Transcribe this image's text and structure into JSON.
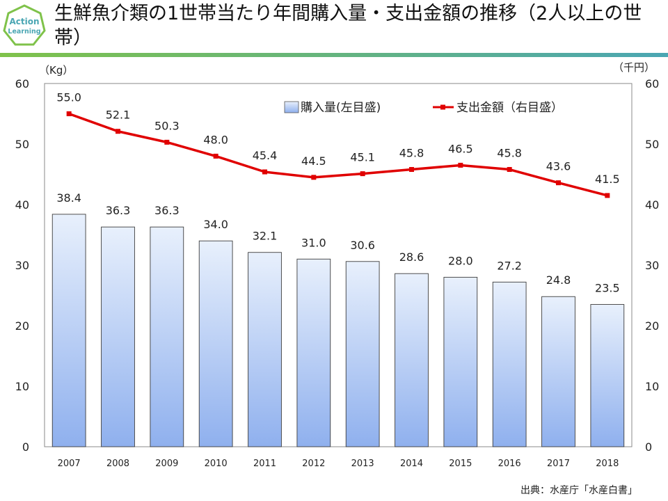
{
  "header": {
    "logo_text_line1": "Action",
    "logo_text_line2": "Learning",
    "title": "生鮮魚介類の1世帯当たり年間購入量・支出金額の推移（2人以上の世帯）"
  },
  "colors": {
    "bar_top": "#e8f0fc",
    "bar_bottom": "#8fb0ee",
    "bar_stroke": "#3c3c3c",
    "line": "#e00000",
    "accent_green": "#7fc24a",
    "accent_teal": "#4aa6b3"
  },
  "chart_data": {
    "type": "bar+line",
    "categories": [
      "2007",
      "2008",
      "2009",
      "2010",
      "2011",
      "2012",
      "2013",
      "2014",
      "2015",
      "2016",
      "2017",
      "2018"
    ],
    "series": [
      {
        "name": "購入量(左目盛)",
        "type": "bar",
        "axis": "left",
        "values": [
          38.4,
          36.3,
          36.3,
          34.0,
          32.1,
          31.0,
          30.6,
          28.6,
          28.0,
          27.2,
          24.8,
          23.5
        ],
        "labels": [
          "38.4",
          "36.3",
          "36.3",
          "34.0",
          "32.1",
          "31.0",
          "30.6",
          "28.6",
          "28.0",
          "27.2",
          "24.8",
          "23.5"
        ]
      },
      {
        "name": "支出金額（右目盛）",
        "type": "line",
        "axis": "right",
        "values": [
          55.0,
          52.1,
          50.3,
          48.0,
          45.4,
          44.5,
          45.1,
          45.8,
          46.5,
          45.8,
          43.6,
          41.5
        ],
        "labels": [
          "55.0",
          "52.1",
          "50.3",
          "48.0",
          "45.4",
          "44.5",
          "45.1",
          "45.8",
          "46.5",
          "45.8",
          "43.6",
          "41.5"
        ]
      }
    ],
    "left_axis": {
      "unit": "（Kg）",
      "range": [
        0,
        60
      ],
      "ticks": [
        "0",
        "10",
        "20",
        "30",
        "40",
        "50",
        "60"
      ]
    },
    "right_axis": {
      "unit": "（千円）",
      "range": [
        0,
        60
      ],
      "ticks": [
        "0",
        "10",
        "20",
        "30",
        "40",
        "50",
        "60"
      ]
    },
    "legend_position": "top-right"
  },
  "footer": {
    "source": "出典：水産庁「水産白書」"
  }
}
